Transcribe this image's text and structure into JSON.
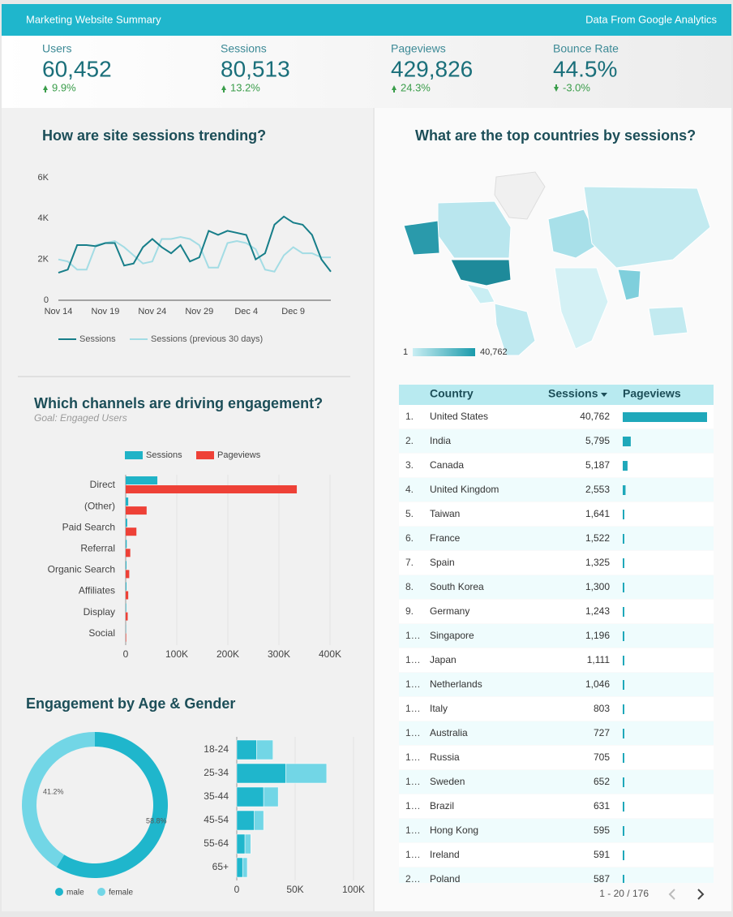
{
  "header": {
    "title": "Marketing Website Summary",
    "source": "Data From Google Analytics"
  },
  "kpis": [
    {
      "label": "Users",
      "value": "60,452",
      "change": "9.9%"
    },
    {
      "label": "Sessions",
      "value": "80,513",
      "change": "13.2%"
    },
    {
      "label": "Pageviews",
      "value": "429,826",
      "change": "24.3%"
    },
    {
      "label": "Bounce Rate",
      "value": "44.5%",
      "change": "-3.0%"
    }
  ],
  "trend": {
    "type": "line",
    "title": "How are site sessions trending?",
    "categories": [
      "Nov 14",
      null,
      null,
      null,
      null,
      "Nov 19",
      null,
      null,
      null,
      null,
      "Nov 24",
      null,
      null,
      null,
      null,
      "Nov 29",
      null,
      null,
      null,
      null,
      "Dec 4",
      null,
      null,
      null,
      null,
      "Dec 9",
      null,
      null,
      null,
      null
    ],
    "series": [
      {
        "name": "Sessions",
        "color": "#177e89",
        "values": [
          1350,
          1500,
          2700,
          2700,
          2650,
          2800,
          2800,
          1700,
          1800,
          2600,
          3000,
          2600,
          2300,
          2700,
          1900,
          2100,
          3400,
          3200,
          3400,
          3300,
          3200,
          2000,
          2300,
          3700,
          4100,
          3800,
          3700,
          3200,
          2000,
          1400
        ]
      },
      {
        "name": "Sessions (previous 30 days)",
        "color": "#a3dce4",
        "values": [
          2000,
          1900,
          1500,
          1500,
          2700,
          2800,
          2900,
          2600,
          2200,
          1800,
          1900,
          3000,
          3000,
          3100,
          3000,
          2700,
          1600,
          1600,
          2800,
          2900,
          2800,
          2500,
          1500,
          1400,
          2200,
          2600,
          2300,
          2300,
          2100,
          2100
        ]
      }
    ],
    "ylim": [
      0,
      6000
    ],
    "yticks": [
      0,
      {
        "value": 2000,
        "label": "2K"
      },
      {
        "value": 4000,
        "label": "4K"
      },
      {
        "value": 6000,
        "label": "6K"
      }
    ]
  },
  "map": {
    "title": "What are the top countries by sessions?",
    "legend_min": "1",
    "legend_max": "40,762"
  },
  "countries": {
    "columns": [
      "Country",
      "Sessions",
      "Pageviews"
    ],
    "rows": [
      {
        "rank": "1.",
        "country": "United States",
        "sessions": "40,762",
        "pageviews": 210000
      },
      {
        "rank": "2.",
        "country": "India",
        "sessions": "5,795",
        "pageviews": 20000
      },
      {
        "rank": "3.",
        "country": "Canada",
        "sessions": "5,187",
        "pageviews": 12000
      },
      {
        "rank": "4.",
        "country": "United Kingdom",
        "sessions": "2,553",
        "pageviews": 7000
      },
      {
        "rank": "5.",
        "country": "Taiwan",
        "sessions": "1,641",
        "pageviews": 3500
      },
      {
        "rank": "6.",
        "country": "France",
        "sessions": "1,522",
        "pageviews": 3300
      },
      {
        "rank": "7.",
        "country": "Spain",
        "sessions": "1,325",
        "pageviews": 3000
      },
      {
        "rank": "8.",
        "country": "South Korea",
        "sessions": "1,300",
        "pageviews": 2900
      },
      {
        "rank": "9.",
        "country": "Germany",
        "sessions": "1,243",
        "pageviews": 2800
      },
      {
        "rank": "1…",
        "country": "Singapore",
        "sessions": "1,196",
        "pageviews": 2700
      },
      {
        "rank": "1…",
        "country": "Japan",
        "sessions": "1,111",
        "pageviews": 2600
      },
      {
        "rank": "1…",
        "country": "Netherlands",
        "sessions": "1,046",
        "pageviews": 2500
      },
      {
        "rank": "1…",
        "country": "Italy",
        "sessions": "803",
        "pageviews": 2000
      },
      {
        "rank": "1…",
        "country": "Australia",
        "sessions": "727",
        "pageviews": 1900
      },
      {
        "rank": "1…",
        "country": "Russia",
        "sessions": "705",
        "pageviews": 1800
      },
      {
        "rank": "1…",
        "country": "Sweden",
        "sessions": "652",
        "pageviews": 1700
      },
      {
        "rank": "1…",
        "country": "Brazil",
        "sessions": "631",
        "pageviews": 1600
      },
      {
        "rank": "1…",
        "country": "Hong Kong",
        "sessions": "595",
        "pageviews": 1500
      },
      {
        "rank": "1…",
        "country": "Ireland",
        "sessions": "591",
        "pageviews": 1500
      },
      {
        "rank": "2…",
        "country": "Poland",
        "sessions": "587",
        "pageviews": 1400
      }
    ],
    "pagination": "1 - 20 / 176"
  },
  "channels": {
    "type": "bar",
    "orientation": "horizontal",
    "title": "Which channels are driving engagement?",
    "subtitle": "Goal: Engaged Users",
    "categories": [
      "Direct",
      "(Other)",
      "Paid Search",
      "Referral",
      "Organic Search",
      "Affiliates",
      "Display",
      "Social"
    ],
    "series": [
      {
        "name": "Sessions",
        "color": "#20b3c7",
        "values": [
          62000,
          5000,
          3000,
          2000,
          1500,
          1500,
          1000,
          500
        ]
      },
      {
        "name": "Pageviews",
        "color": "#ee4137",
        "values": [
          335000,
          41000,
          21000,
          9000,
          7000,
          5000,
          4000,
          1000
        ]
      }
    ],
    "xlim": [
      0,
      400000
    ],
    "xticks": [
      0,
      {
        "value": 100000,
        "label": "100K"
      },
      {
        "value": 200000,
        "label": "200K"
      },
      {
        "value": 300000,
        "label": "300K"
      },
      {
        "value": 400000,
        "label": "400K"
      }
    ]
  },
  "gender": {
    "type": "pie",
    "donut": true,
    "title": "Engagement by Age & Gender",
    "categories": [
      "male",
      "female"
    ],
    "values": [
      58.8,
      41.2
    ],
    "value_labels": [
      "58.8%",
      "41.2%"
    ],
    "colors": [
      "#1fb6cc",
      "#72d6e6"
    ]
  },
  "age": {
    "type": "bar",
    "orientation": "horizontal",
    "stacked": true,
    "categories": [
      "18-24",
      "25-34",
      "35-44",
      "45-54",
      "55-64",
      "65+"
    ],
    "series": [
      {
        "color": "#1fb6cc",
        "values": [
          17000,
          42000,
          23000,
          15000,
          7000,
          5000
        ]
      },
      {
        "color": "#72d6e6",
        "values": [
          14000,
          35000,
          12500,
          8000,
          5000,
          4000
        ]
      }
    ],
    "xlim": [
      0,
      100000
    ],
    "xticks": [
      0,
      {
        "value": 50000,
        "label": "50K"
      },
      {
        "value": 100000,
        "label": "100K"
      }
    ]
  }
}
